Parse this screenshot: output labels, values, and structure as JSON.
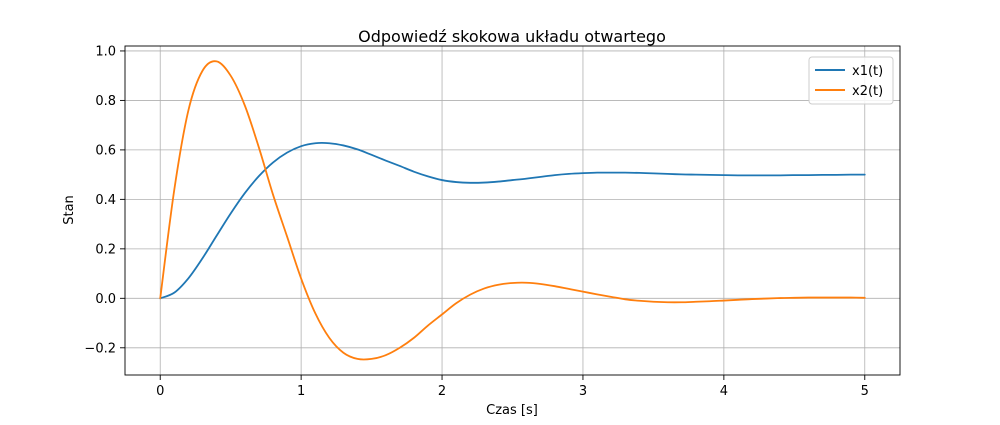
{
  "chart_data": {
    "type": "line",
    "title": "Odpowiedź skokowa układu otwartego",
    "xlabel": "Czas [s]",
    "ylabel": "Stan",
    "xlim": [
      -0.25,
      5.25
    ],
    "ylim": [
      -0.31,
      1.02
    ],
    "xticks": [
      0,
      1,
      2,
      3,
      4,
      5
    ],
    "xtick_labels": [
      "0",
      "1",
      "2",
      "3",
      "4",
      "5"
    ],
    "yticks": [
      -0.2,
      0.0,
      0.2,
      0.4,
      0.6,
      0.8,
      1.0
    ],
    "ytick_labels": [
      "−0.2",
      "0.0",
      "0.2",
      "0.4",
      "0.6",
      "0.8",
      "1.0"
    ],
    "grid": true,
    "legend_position": "top-right",
    "x": [
      0,
      0.1,
      0.2,
      0.3,
      0.4,
      0.5,
      0.6,
      0.7,
      0.8,
      0.9,
      1.0,
      1.1,
      1.2,
      1.3,
      1.4,
      1.5,
      1.6,
      1.7,
      1.8,
      1.9,
      2.0,
      2.1,
      2.2,
      2.3,
      2.4,
      2.5,
      2.6,
      2.7,
      2.8,
      2.9,
      3.0,
      3.1,
      3.2,
      3.3,
      3.4,
      3.5,
      3.6,
      3.7,
      3.8,
      3.9,
      4.0,
      4.1,
      4.2,
      4.3,
      4.4,
      4.5,
      4.6,
      4.7,
      4.8,
      4.9,
      5.0
    ],
    "series": [
      {
        "name": "x1(t)",
        "color": "#1f77b4",
        "values": [
          0.0,
          0.023,
          0.081,
          0.162,
          0.253,
          0.343,
          0.425,
          0.494,
          0.549,
          0.589,
          0.615,
          0.627,
          0.627,
          0.618,
          0.602,
          0.58,
          0.557,
          0.535,
          0.512,
          0.493,
          0.478,
          0.47,
          0.467,
          0.468,
          0.472,
          0.478,
          0.484,
          0.491,
          0.498,
          0.503,
          0.506,
          0.508,
          0.508,
          0.508,
          0.507,
          0.505,
          0.503,
          0.501,
          0.5,
          0.499,
          0.498,
          0.497,
          0.497,
          0.497,
          0.497,
          0.498,
          0.498,
          0.499,
          0.499,
          0.5,
          0.5
        ]
      },
      {
        "name": "x2(t)",
        "color": "#ff7f0e",
        "values": [
          0.0,
          0.44,
          0.76,
          0.92,
          0.958,
          0.9,
          0.78,
          0.61,
          0.42,
          0.25,
          0.08,
          -0.06,
          -0.16,
          -0.22,
          -0.245,
          -0.245,
          -0.23,
          -0.2,
          -0.16,
          -0.11,
          -0.065,
          -0.02,
          0.015,
          0.04,
          0.055,
          0.062,
          0.063,
          0.058,
          0.049,
          0.038,
          0.027,
          0.016,
          0.006,
          -0.004,
          -0.01,
          -0.014,
          -0.016,
          -0.016,
          -0.014,
          -0.012,
          -0.009,
          -0.006,
          -0.003,
          -0.001,
          0.001,
          0.002,
          0.003,
          0.003,
          0.003,
          0.003,
          0.002
        ]
      }
    ]
  }
}
